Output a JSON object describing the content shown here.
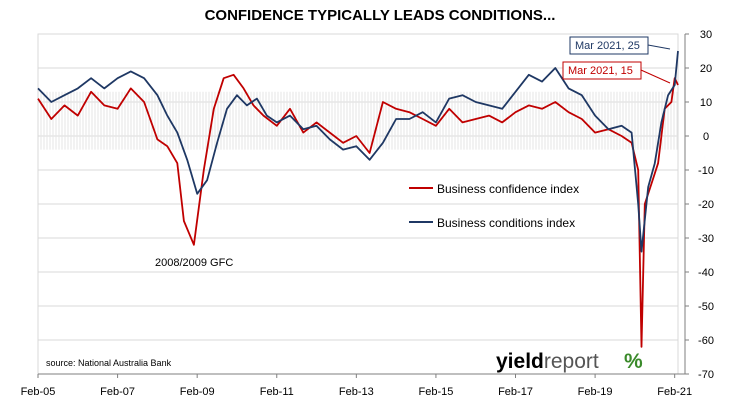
{
  "chart_data": {
    "type": "line",
    "title": "CONFIDENCE TYPICALLY LEADS CONDITIONS...",
    "xlabel": "",
    "ylabel": "",
    "ylim": [
      -70,
      30
    ],
    "yticks": [
      30,
      20,
      10,
      0,
      -10,
      -20,
      -30,
      -40,
      -50,
      -60,
      -70
    ],
    "x_tick_labels": [
      "Feb-05",
      "Feb-07",
      "Feb-09",
      "Feb-11",
      "Feb-13",
      "Feb-15",
      "Feb-17",
      "Feb-19",
      "Feb-21"
    ],
    "x_start": "Feb-05",
    "x_end": "Mar-21",
    "grid": "horizontal",
    "source": "source: National Australia Bank",
    "brand": {
      "text_bold": "yield",
      "text_light": "report",
      "symbol": "%"
    },
    "annotations": [
      {
        "text": "2008/2009 GFC"
      },
      {
        "text": "Mar 2021, 25",
        "series": "Business conditions index"
      },
      {
        "text": "Mar 2021, 15",
        "series": "Business confidence index"
      }
    ],
    "colors": {
      "confidence": "#c00000",
      "conditions": "#1f3864",
      "grid": "#d9d9d9",
      "brand_green": "#3a8a2a"
    },
    "series": [
      {
        "name": "Business confidence index",
        "color": "#c00000",
        "points": [
          [
            "Feb-05",
            11
          ],
          [
            "Jun-05",
            5
          ],
          [
            "Oct-05",
            9
          ],
          [
            "Feb-06",
            6
          ],
          [
            "Jun-06",
            13
          ],
          [
            "Oct-06",
            9
          ],
          [
            "Feb-07",
            8
          ],
          [
            "Jun-07",
            14
          ],
          [
            "Oct-07",
            10
          ],
          [
            "Feb-08",
            -1
          ],
          [
            "May-08",
            -3
          ],
          [
            "Aug-08",
            -8
          ],
          [
            "Oct-08",
            -25
          ],
          [
            "Jan-09",
            -32
          ],
          [
            "Apr-09",
            -10
          ],
          [
            "Jul-09",
            8
          ],
          [
            "Oct-09",
            17
          ],
          [
            "Jan-10",
            18
          ],
          [
            "Apr-10",
            14
          ],
          [
            "Jul-10",
            9
          ],
          [
            "Oct-10",
            6
          ],
          [
            "Feb-11",
            3
          ],
          [
            "Jun-11",
            8
          ],
          [
            "Oct-11",
            1
          ],
          [
            "Feb-12",
            4
          ],
          [
            "Jun-12",
            1
          ],
          [
            "Oct-12",
            -2
          ],
          [
            "Feb-13",
            0
          ],
          [
            "Jun-13",
            -5
          ],
          [
            "Oct-13",
            10
          ],
          [
            "Feb-14",
            8
          ],
          [
            "Jun-14",
            7
          ],
          [
            "Oct-14",
            5
          ],
          [
            "Feb-15",
            3
          ],
          [
            "Jun-15",
            8
          ],
          [
            "Oct-15",
            4
          ],
          [
            "Feb-16",
            5
          ],
          [
            "Jun-16",
            6
          ],
          [
            "Oct-16",
            4
          ],
          [
            "Feb-17",
            7
          ],
          [
            "Jun-17",
            9
          ],
          [
            "Oct-17",
            8
          ],
          [
            "Feb-18",
            10
          ],
          [
            "Jun-18",
            7
          ],
          [
            "Oct-18",
            5
          ],
          [
            "Feb-19",
            1
          ],
          [
            "Jun-19",
            2
          ],
          [
            "Oct-19",
            0
          ],
          [
            "Jan-20",
            -2
          ],
          [
            "Mar-20",
            -10
          ],
          [
            "Apr-20",
            -62
          ],
          [
            "May-20",
            -20
          ],
          [
            "Jul-20",
            -14
          ],
          [
            "Sep-20",
            -8
          ],
          [
            "Nov-20",
            8
          ],
          [
            "Jan-21",
            10
          ],
          [
            "Feb-21",
            17
          ],
          [
            "Mar-21",
            15
          ]
        ]
      },
      {
        "name": "Business conditions index",
        "color": "#1f3864",
        "points": [
          [
            "Feb-05",
            14
          ],
          [
            "Jun-05",
            10
          ],
          [
            "Oct-05",
            12
          ],
          [
            "Feb-06",
            14
          ],
          [
            "Jun-06",
            17
          ],
          [
            "Oct-06",
            14
          ],
          [
            "Feb-07",
            17
          ],
          [
            "Jun-07",
            19
          ],
          [
            "Oct-07",
            17
          ],
          [
            "Feb-08",
            12
          ],
          [
            "May-08",
            6
          ],
          [
            "Aug-08",
            1
          ],
          [
            "Nov-08",
            -7
          ],
          [
            "Feb-09",
            -17
          ],
          [
            "May-09",
            -13
          ],
          [
            "Aug-09",
            -2
          ],
          [
            "Nov-09",
            8
          ],
          [
            "Feb-10",
            12
          ],
          [
            "May-10",
            9
          ],
          [
            "Aug-10",
            11
          ],
          [
            "Nov-10",
            6
          ],
          [
            "Feb-11",
            4
          ],
          [
            "Jun-11",
            6
          ],
          [
            "Oct-11",
            2
          ],
          [
            "Feb-12",
            3
          ],
          [
            "Jun-12",
            -1
          ],
          [
            "Oct-12",
            -4
          ],
          [
            "Feb-13",
            -3
          ],
          [
            "Jun-13",
            -7
          ],
          [
            "Oct-13",
            -2
          ],
          [
            "Feb-14",
            5
          ],
          [
            "Jun-14",
            5
          ],
          [
            "Oct-14",
            7
          ],
          [
            "Feb-15",
            4
          ],
          [
            "Jun-15",
            11
          ],
          [
            "Oct-15",
            12
          ],
          [
            "Feb-16",
            10
          ],
          [
            "Jun-16",
            9
          ],
          [
            "Oct-16",
            8
          ],
          [
            "Feb-17",
            13
          ],
          [
            "Jun-17",
            18
          ],
          [
            "Oct-17",
            16
          ],
          [
            "Feb-18",
            20
          ],
          [
            "Jun-18",
            14
          ],
          [
            "Oct-18",
            12
          ],
          [
            "Feb-19",
            6
          ],
          [
            "Jun-19",
            2
          ],
          [
            "Oct-19",
            3
          ],
          [
            "Jan-20",
            1
          ],
          [
            "Mar-20",
            -20
          ],
          [
            "Apr-20",
            -34
          ],
          [
            "Jun-20",
            -15
          ],
          [
            "Aug-20",
            -8
          ],
          [
            "Oct-20",
            4
          ],
          [
            "Dec-20",
            12
          ],
          [
            "Feb-21",
            15
          ],
          [
            "Mar-21",
            25
          ]
        ]
      }
    ]
  }
}
